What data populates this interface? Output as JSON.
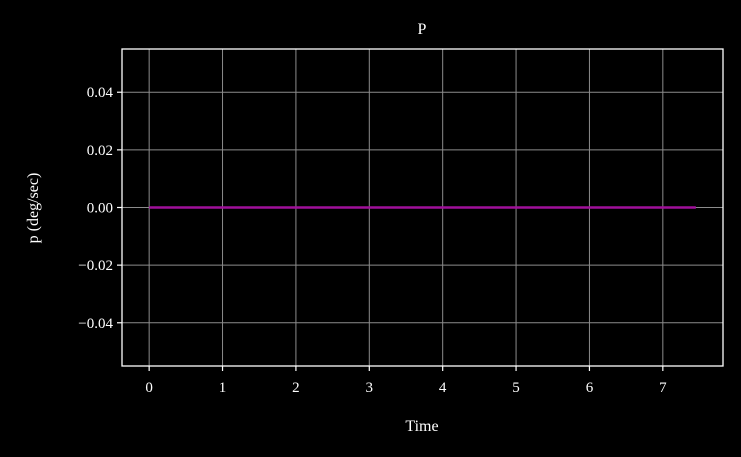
{
  "chart_data": {
    "type": "line",
    "title": "P",
    "xlabel": "Time",
    "ylabel": "p (deg/sec)",
    "xlim": [
      -0.37,
      7.82
    ],
    "ylim": [
      -0.055,
      0.055
    ],
    "xticks": [
      0,
      1,
      2,
      3,
      4,
      5,
      6,
      7
    ],
    "xtick_labels": [
      "0",
      "1",
      "2",
      "3",
      "4",
      "5",
      "6",
      "7"
    ],
    "yticks": [
      0.04,
      0.02,
      0.0,
      -0.02,
      -0.04
    ],
    "ytick_labels": [
      "0.04",
      "0.02",
      "0.00",
      "−0.02",
      "−0.04"
    ],
    "grid": true,
    "colors": {
      "background": "#000000",
      "axes": "#ffffff",
      "grid": "#8c8c8c",
      "series": "#a0109a"
    },
    "series": [
      {
        "x": [
          0,
          7.45
        ],
        "y": [
          0,
          0
        ]
      }
    ]
  }
}
